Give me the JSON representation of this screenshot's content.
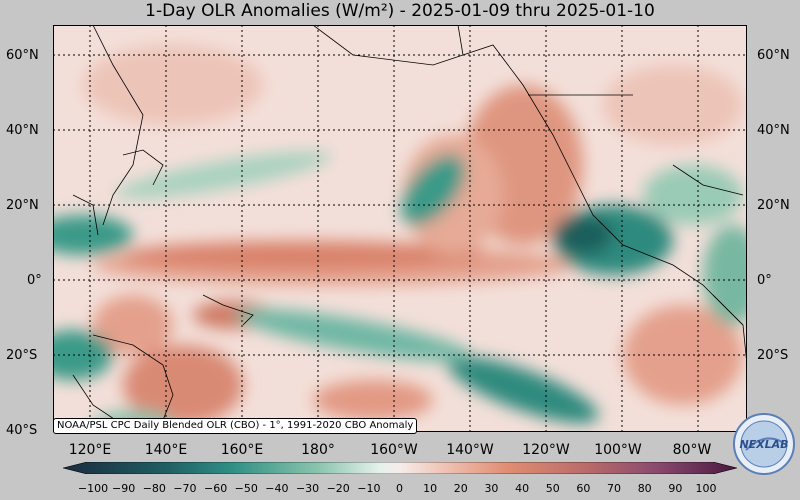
{
  "title": "1-Day OLR Anomalies (W/m²) - 2025-01-09 thru 2025-01-10",
  "lat_labels": [
    "60°N",
    "40°N",
    "20°N",
    "0°",
    "20°S",
    "40°S"
  ],
  "lon_labels": [
    "120°E",
    "140°E",
    "160°E",
    "180°",
    "160°W",
    "140°W",
    "120°W",
    "100°W",
    "80°W"
  ],
  "colorbar": {
    "ticks": [
      "−100",
      "−90",
      "−80",
      "−70",
      "−60",
      "−50",
      "−40",
      "−30",
      "−20",
      "−10",
      "0",
      "10",
      "20",
      "30",
      "40",
      "50",
      "60",
      "70",
      "80",
      "90",
      "100"
    ],
    "colors": {
      "min": "#1b2a3f",
      "teal": "#2f8f84",
      "light": "#f6ecea",
      "salmon": "#e08d72",
      "max": "#4a1840"
    }
  },
  "credit": "NOAA/PSL CPC Daily Blended OLR (CBO) - 1°, 1991-2020 CBO Anomaly",
  "logo_text": "NEXLAB"
}
